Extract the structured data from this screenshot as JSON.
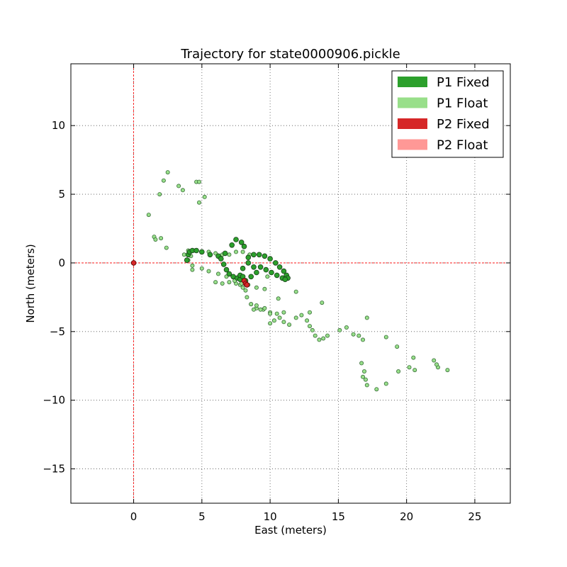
{
  "chart_data": {
    "type": "scatter",
    "title": "Trajectory for state0000906.pickle",
    "xlabel": "East (meters)",
    "ylabel": "North (meters)",
    "xlim": [
      -4.6,
      27.6
    ],
    "ylim": [
      -17.5,
      14.5
    ],
    "xticks": [
      0,
      5,
      10,
      15,
      20,
      25
    ],
    "yticks": [
      -15,
      -10,
      -5,
      0,
      5,
      10
    ],
    "xtick_labels": [
      "0",
      "5",
      "10",
      "15",
      "20",
      "25"
    ],
    "ytick_labels": [
      "−15",
      "−10",
      "−5",
      "0",
      "5",
      "10"
    ],
    "grid": true,
    "grid_style": "dotted",
    "reference_lines": {
      "x": 0,
      "y": 0,
      "color": "#ff0000"
    },
    "legend_position": "upper right",
    "legend": [
      {
        "label": "P1 Fixed",
        "color": "#2ca02c"
      },
      {
        "label": "P1 Float",
        "color": "#98df8a"
      },
      {
        "label": "P2 Fixed",
        "color": "#d62728"
      },
      {
        "label": "P2 Float",
        "color": "#ff9896"
      }
    ],
    "series": [
      {
        "name": "P1 Float",
        "color": "#98df8a",
        "x": [
          1.1,
          1.5,
          1.6,
          1.9,
          2.0,
          2.2,
          2.4,
          2.5,
          3.3,
          3.6,
          4.0,
          4.3,
          4.6,
          4.8,
          4.8,
          5.2,
          4.2,
          3.7,
          4.0,
          4.5,
          5.0,
          5.5,
          6.0,
          6.5,
          7.0,
          7.5,
          8.0,
          8.5,
          6.0,
          6.5,
          7.0,
          7.5,
          7.8,
          8.0,
          8.2,
          8.3,
          8.6,
          9.0,
          9.5,
          10.0,
          10.5,
          11.0,
          4.3,
          5.0,
          5.5,
          6.2,
          6.8,
          7.4,
          7.9,
          8.4,
          9.0,
          9.6,
          8.6,
          8.8,
          9.0,
          9.3,
          9.6,
          10.0,
          10.0,
          10.3,
          10.7,
          11.0,
          11.4,
          11.9,
          12.3,
          12.7,
          12.9,
          13.1,
          13.3,
          13.6,
          13.9,
          14.2,
          13.8,
          12.9,
          15.1,
          15.6,
          16.1,
          16.5,
          16.8,
          17.1,
          16.7,
          16.9,
          17.0,
          16.8,
          17.1,
          17.8,
          18.5,
          18.5,
          19.3,
          19.4,
          20.2,
          20.5,
          20.6,
          22.0,
          22.3,
          23.0,
          22.2,
          11.9,
          10.6,
          9.8
        ],
        "y": [
          3.5,
          1.9,
          1.7,
          5.0,
          1.8,
          6.0,
          1.1,
          6.6,
          5.6,
          5.3,
          0.2,
          -0.5,
          5.9,
          4.4,
          5.9,
          4.8,
          0.5,
          0.6,
          0.9,
          0.9,
          0.8,
          0.8,
          0.7,
          0.6,
          0.6,
          0.8,
          0.8,
          0.6,
          -1.4,
          -1.5,
          -1.4,
          -1.5,
          -1.6,
          -1.8,
          -2.0,
          -2.5,
          -3.0,
          -3.3,
          -3.4,
          -3.6,
          -3.7,
          -3.6,
          -0.2,
          -0.4,
          -0.6,
          -0.8,
          -1.0,
          -1.3,
          -1.5,
          -1.6,
          -1.8,
          -1.9,
          -3.0,
          -3.4,
          -3.1,
          -3.4,
          -3.3,
          -3.7,
          -4.4,
          -4.2,
          -4.0,
          -4.3,
          -4.5,
          -4.0,
          -3.8,
          -4.2,
          -4.6,
          -4.9,
          -5.3,
          -5.6,
          -5.5,
          -5.3,
          -2.9,
          -3.6,
          -4.9,
          -4.7,
          -5.2,
          -5.3,
          -5.6,
          -4.0,
          -7.3,
          -7.9,
          -8.5,
          -8.3,
          -8.9,
          -9.2,
          -8.8,
          -5.4,
          -6.1,
          -7.9,
          -7.6,
          -6.9,
          -7.8,
          -7.1,
          -7.6,
          -7.8,
          -7.4,
          -2.1,
          -2.6,
          -1.0
        ]
      },
      {
        "name": "P1 Fixed",
        "color": "#2ca02c",
        "x": [
          3.9,
          4.0,
          4.1,
          4.3,
          4.6,
          5.0,
          5.6,
          6.2,
          6.7,
          7.2,
          7.5,
          7.9,
          8.1,
          6.4,
          6.6,
          6.8,
          7.0,
          7.3,
          7.6,
          7.8,
          8.4,
          8.8,
          9.2,
          9.6,
          10.0,
          10.4,
          10.7,
          11.0,
          11.2,
          11.3,
          9.3,
          9.7,
          10.1,
          10.5,
          10.9,
          11.1,
          7.8,
          8.0,
          8.4,
          8.8,
          9.0,
          8.6,
          8.2,
          8.0
        ],
        "y": [
          0.2,
          0.6,
          0.8,
          0.9,
          0.9,
          0.8,
          0.6,
          0.5,
          0.7,
          1.3,
          1.7,
          1.5,
          1.2,
          0.3,
          -0.1,
          -0.5,
          -0.8,
          -1.0,
          -1.1,
          -1.2,
          0.4,
          0.6,
          0.6,
          0.5,
          0.3,
          0.0,
          -0.3,
          -0.6,
          -0.9,
          -1.1,
          -0.3,
          -0.5,
          -0.7,
          -0.9,
          -1.1,
          -1.2,
          -0.9,
          -0.4,
          0.0,
          -0.3,
          -0.7,
          -1.0,
          -1.3,
          -1.0
        ]
      },
      {
        "name": "P2 Fixed",
        "color": "#d62728",
        "x": [
          0.0,
          8.1,
          8.2,
          8.3
        ],
        "y": [
          0.0,
          -1.3,
          -1.5,
          -1.6
        ]
      },
      {
        "name": "P2 Float",
        "color": "#ff9896",
        "x": [],
        "y": []
      }
    ]
  }
}
